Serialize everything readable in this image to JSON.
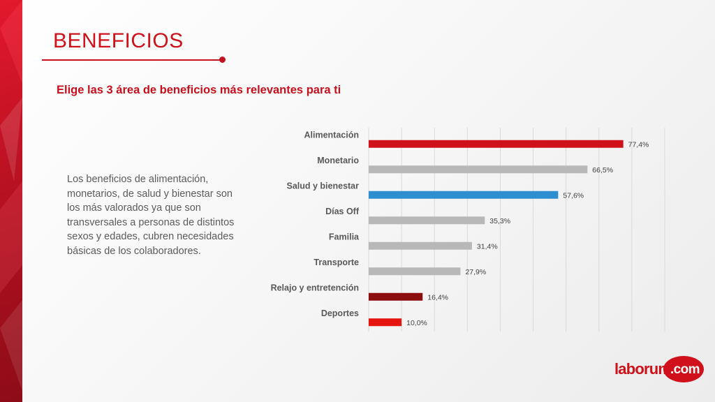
{
  "slide": {
    "title": "BENEFICIOS",
    "subtitle": "Elige las 3 área de beneficios más relevantes para ti",
    "description": "Los beneficios de alimentación, monetarios, de salud y bienestar son los más valorados ya que son transversales a personas de distintos sexos y edades, cubren necesidades básicas de los colaboradores."
  },
  "logo": {
    "main": "laborum",
    "com": ".com"
  },
  "colors": {
    "accent_red": "#d0111b",
    "bar_red": "#d0111b",
    "bar_gray": "#b8b8b8",
    "bar_blue": "#2e8fd0",
    "bar_dark_red": "#8b0d0d",
    "bar_bright_red": "#e5140e"
  },
  "chart_data": {
    "type": "bar",
    "orientation": "horizontal",
    "categories": [
      "Alimentación",
      "Monetario",
      "Salud y bienestar",
      "Días Off",
      "Familia",
      "Transporte",
      "Relajo y entretención",
      "Deportes"
    ],
    "values": [
      77.4,
      66.5,
      57.6,
      35.3,
      31.4,
      27.9,
      16.4,
      10.0
    ],
    "value_labels": [
      "77,4%",
      "66,5%",
      "57,6%",
      "35,3%",
      "31,4%",
      "27,9%",
      "16,4%",
      "10,0%"
    ],
    "bar_colors": [
      "#d0111b",
      "#b8b8b8",
      "#2e8fd0",
      "#b8b8b8",
      "#b8b8b8",
      "#b8b8b8",
      "#8b0d0d",
      "#e5140e"
    ],
    "xlim": [
      0,
      90
    ],
    "grid": true,
    "legend": "none"
  }
}
